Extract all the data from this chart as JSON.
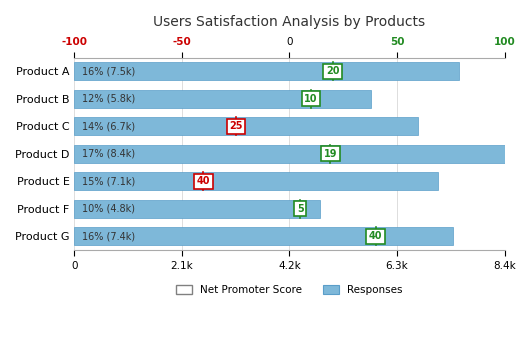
{
  "title": "Users Satisfaction Analysis by Products",
  "products": [
    "Product A",
    "Product B",
    "Product C",
    "Product D",
    "Product E",
    "Product F",
    "Product G"
  ],
  "responses": [
    7500,
    5800,
    6700,
    8400,
    7100,
    4800,
    7400
  ],
  "response_labels": [
    "16% (7.5k)",
    "12% (5.8k)",
    "14% (6.7k)",
    "17% (8.4k)",
    "15% (7.1k)",
    "10% (4.8k)",
    "16% (7.4k)"
  ],
  "nps_scores": [
    20,
    10,
    -25,
    19,
    -40,
    5,
    40
  ],
  "nps_positive": [
    true,
    true,
    false,
    true,
    false,
    true,
    true
  ],
  "bar_color": "#7EB8D9",
  "bar_edge_color": "#5A9EC9",
  "nps_box_color_positive": "#228B22",
  "nps_box_color_negative": "#CC0000",
  "response_max": 8400,
  "nps_min": -100,
  "nps_max": 100,
  "bottom_ticks_responses": [
    0,
    2100,
    4200,
    6300,
    8400
  ],
  "bottom_ticks_labels": [
    "0",
    "2.1k",
    "4.2k",
    "6.3k",
    "8.4k"
  ],
  "top_ticks_nps": [
    -100,
    -50,
    0,
    50,
    100
  ],
  "top_ticks_labels_colors": [
    "#CC0000",
    "#CC0000",
    "#000000",
    "#228B22",
    "#228B22"
  ],
  "legend_label_nps": "Net Promoter Score",
  "legend_label_resp": "Responses",
  "bg_color": "#FFFFFF",
  "grid_color": "#DDDDDD"
}
